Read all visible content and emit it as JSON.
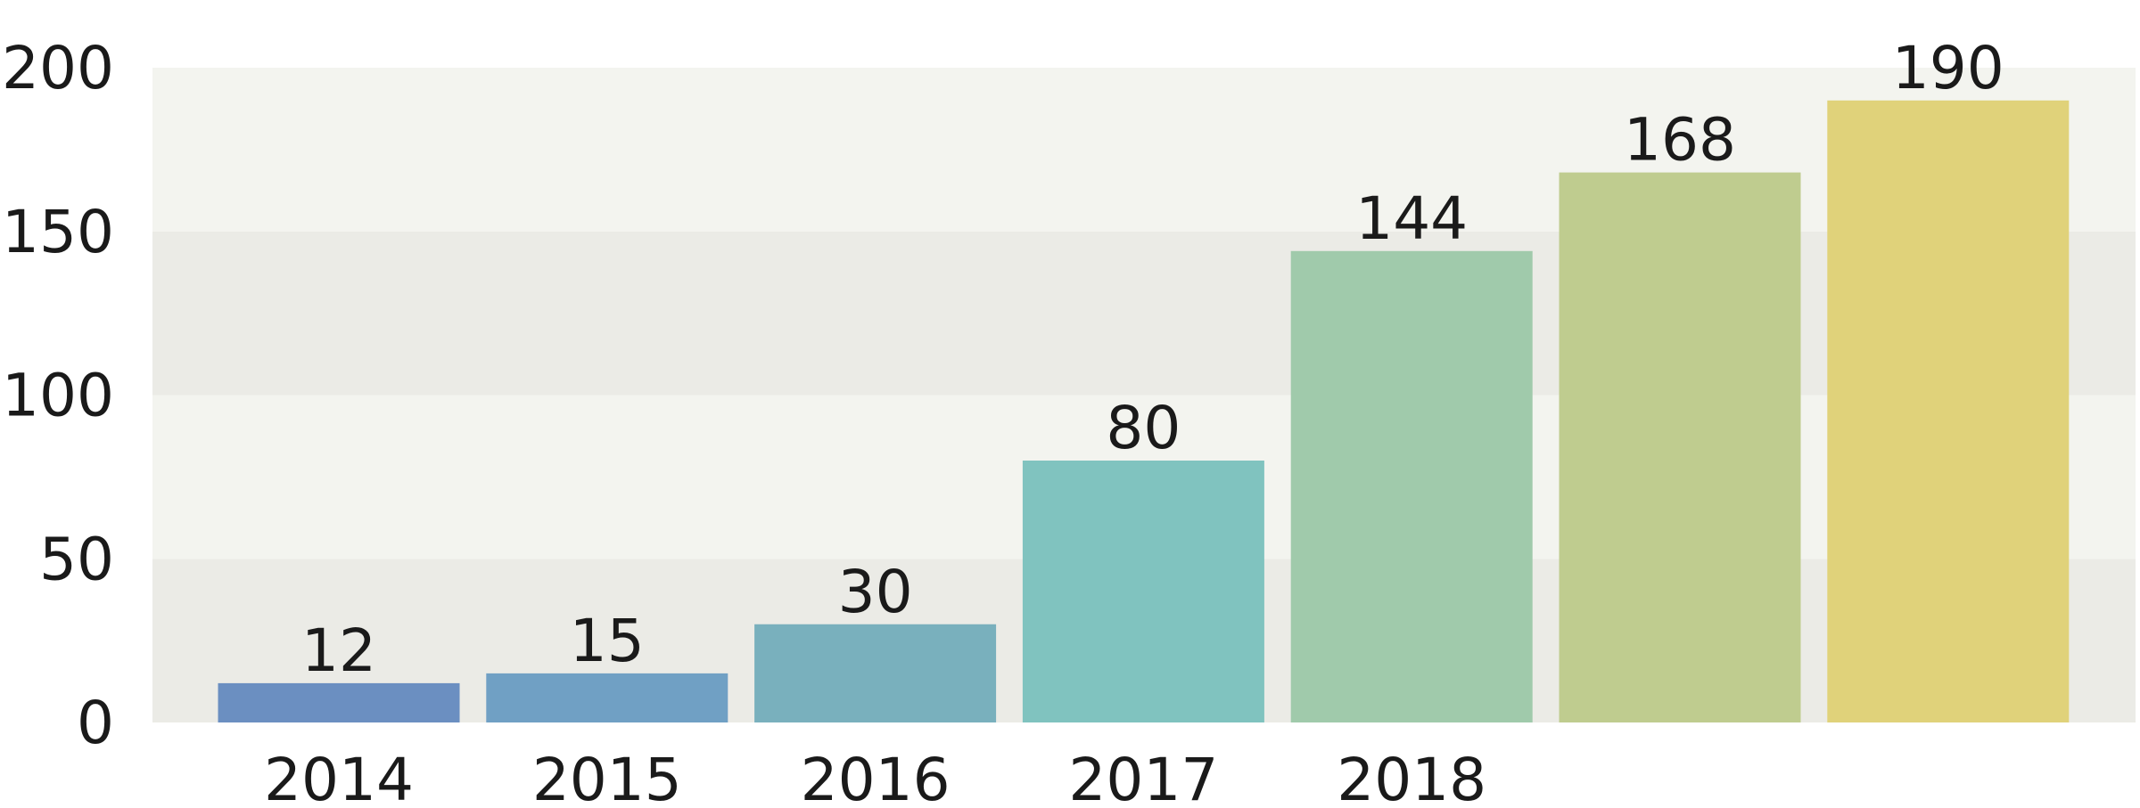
{
  "chart_data": {
    "type": "bar",
    "categories": [
      "2014",
      "2015",
      "2016",
      "2017",
      "2018",
      null,
      null
    ],
    "values": [
      12,
      15,
      30,
      80,
      144,
      168,
      190
    ],
    "colors": [
      "#6b8fc1",
      "#70a0c4",
      "#79b0bd",
      "#80c3bf",
      "#a0caab",
      "#bfcc8f",
      "#e0d27a"
    ],
    "ylim": [
      0,
      200
    ],
    "yticks": [
      0,
      50,
      100,
      150,
      200
    ],
    "grid": true
  }
}
